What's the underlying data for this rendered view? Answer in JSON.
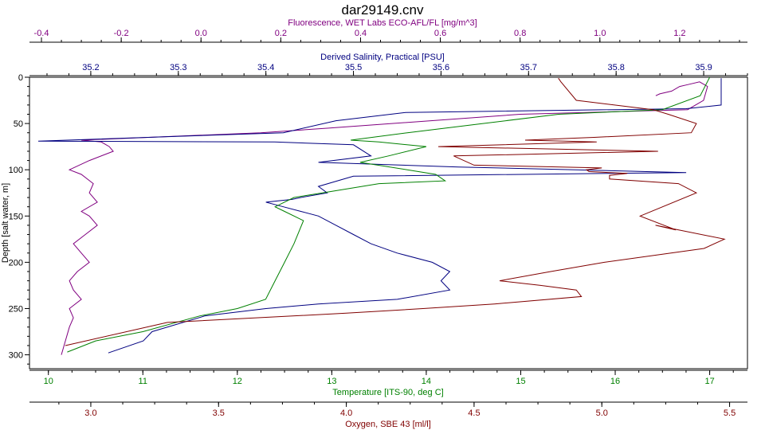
{
  "chart_data": {
    "type": "line",
    "title": "dar29149.cnv",
    "grid": false,
    "y_axis": {
      "label": "Depth [salt water, m]",
      "range": [
        0,
        315
      ],
      "inverted": true,
      "ticks": [
        "0",
        "50",
        "100",
        "150",
        "200",
        "250",
        "300"
      ]
    },
    "x_axes": [
      {
        "id": "fluorescence",
        "label": "Fluorescence, WET Labs ECO-AFL/FL [mg/m^3]",
        "position": "top",
        "color": "#800080",
        "range": [
          -0.43,
          1.37
        ],
        "ticks": [
          "-0.4",
          "-0.2",
          "0.0",
          "0.2",
          "0.4",
          "0.6",
          "0.8",
          "1.0",
          "1.2"
        ]
      },
      {
        "id": "salinity",
        "label": "Derived Salinity, Practical [PSU]",
        "position": "top",
        "color": "#000080",
        "range": [
          35.13,
          35.95
        ],
        "ticks": [
          "35.2",
          "35.3",
          "35.4",
          "35.5",
          "35.6",
          "35.7",
          "35.8",
          "35.9"
        ]
      },
      {
        "id": "temperature",
        "label": "Temperature [ITS-90, deg C]",
        "position": "bottom",
        "color": "#008000",
        "range": [
          9.8,
          17.4
        ],
        "ticks": [
          "10",
          "11",
          "12",
          "13",
          "14",
          "15",
          "16",
          "17"
        ]
      },
      {
        "id": "oxygen",
        "label": "Oxygen, SBE 43 [ml/l]",
        "position": "bottom",
        "color": "#800000",
        "range": [
          2.76,
          5.57
        ],
        "ticks": [
          "3.0",
          "3.5",
          "4.0",
          "4.5",
          "5.0",
          "5.5"
        ]
      }
    ],
    "series": [
      {
        "axis": "fluorescence",
        "color": "#800080",
        "x": [
          1.14,
          1.15,
          1.18,
          1.2,
          1.22,
          1.25,
          1.27,
          1.26,
          1.22,
          0.8,
          0.32,
          0.15,
          -0.3,
          -0.25,
          -0.23,
          -0.22,
          -0.28,
          -0.33,
          -0.3,
          -0.27,
          -0.28,
          -0.26,
          -0.3,
          -0.28,
          -0.26,
          -0.29,
          -0.32,
          -0.3,
          -0.28,
          -0.31,
          -0.33,
          -0.32,
          -0.3,
          -0.33,
          -0.32,
          -0.33,
          -0.35
        ],
        "y": [
          20,
          18,
          15,
          10,
          8,
          5,
          10,
          25,
          35,
          40,
          55,
          60,
          68,
          70,
          75,
          80,
          90,
          100,
          105,
          115,
          125,
          135,
          145,
          150,
          160,
          170,
          180,
          190,
          200,
          210,
          220,
          230,
          240,
          250,
          260,
          270,
          300
        ]
      },
      {
        "axis": "salinity",
        "color": "#000080",
        "x": [
          35.92,
          35.92,
          35.92,
          35.88,
          35.56,
          35.48,
          35.42,
          35.14,
          35.41,
          35.5,
          35.52,
          35.46,
          35.62,
          35.88,
          35.5,
          35.46,
          35.47,
          35.44,
          35.43,
          35.4,
          35.42,
          35.44,
          35.46,
          35.48,
          35.5,
          35.52,
          35.55,
          35.59,
          35.61,
          35.6,
          35.61,
          35.55,
          35.46,
          35.4,
          35.33,
          35.27,
          35.26,
          35.22
        ],
        "y": [
          1,
          5,
          30,
          34,
          38,
          47,
          60,
          69,
          70,
          73,
          85,
          92,
          97,
          103,
          107,
          118,
          125,
          130,
          132,
          135,
          140,
          145,
          150,
          160,
          170,
          180,
          190,
          200,
          210,
          220,
          230,
          240,
          245,
          250,
          258,
          275,
          285,
          298
        ]
      },
      {
        "axis": "temperature",
        "color": "#008000",
        "x": [
          17.0,
          16.9,
          16.5,
          15.4,
          14.6,
          13.8,
          13.2,
          13.5,
          14.0,
          13.6,
          13.3,
          13.8,
          14.1,
          14.2,
          13.5,
          12.9,
          12.6,
          12.4,
          12.5,
          12.7,
          12.6,
          12.5,
          12.4,
          12.3,
          12.0,
          11.6,
          11.0,
          10.5,
          10.2
        ],
        "y": [
          0,
          20,
          35,
          40,
          50,
          60,
          68,
          70,
          75,
          85,
          92,
          100,
          105,
          112,
          115,
          125,
          130,
          140,
          145,
          155,
          180,
          200,
          220,
          240,
          250,
          258,
          275,
          285,
          297
        ]
      },
      {
        "axis": "oxygen",
        "color": "#800000",
        "x": [
          4.83,
          4.84,
          4.9,
          5.2,
          5.26,
          5.37,
          5.35,
          4.97,
          4.7,
          4.98,
          4.36,
          5.22,
          4.42,
          4.5,
          5.0,
          4.94,
          4.95,
          5.1,
          5.03,
          5.03,
          5.3,
          5.37,
          5.15,
          5.29,
          5.21,
          5.48,
          5.4,
          5.01,
          4.8,
          4.6,
          4.76,
          4.9,
          4.92,
          4.58,
          4.3,
          4.0,
          3.3,
          2.9
        ],
        "y": [
          1,
          5,
          25,
          35,
          40,
          50,
          60,
          65,
          68,
          70,
          75,
          80,
          85,
          95,
          98,
          100,
          102,
          104,
          106,
          110,
          115,
          125,
          150,
          165,
          160,
          175,
          185,
          200,
          210,
          220,
          225,
          230,
          237,
          245,
          250,
          255,
          265,
          290
        ]
      }
    ]
  }
}
